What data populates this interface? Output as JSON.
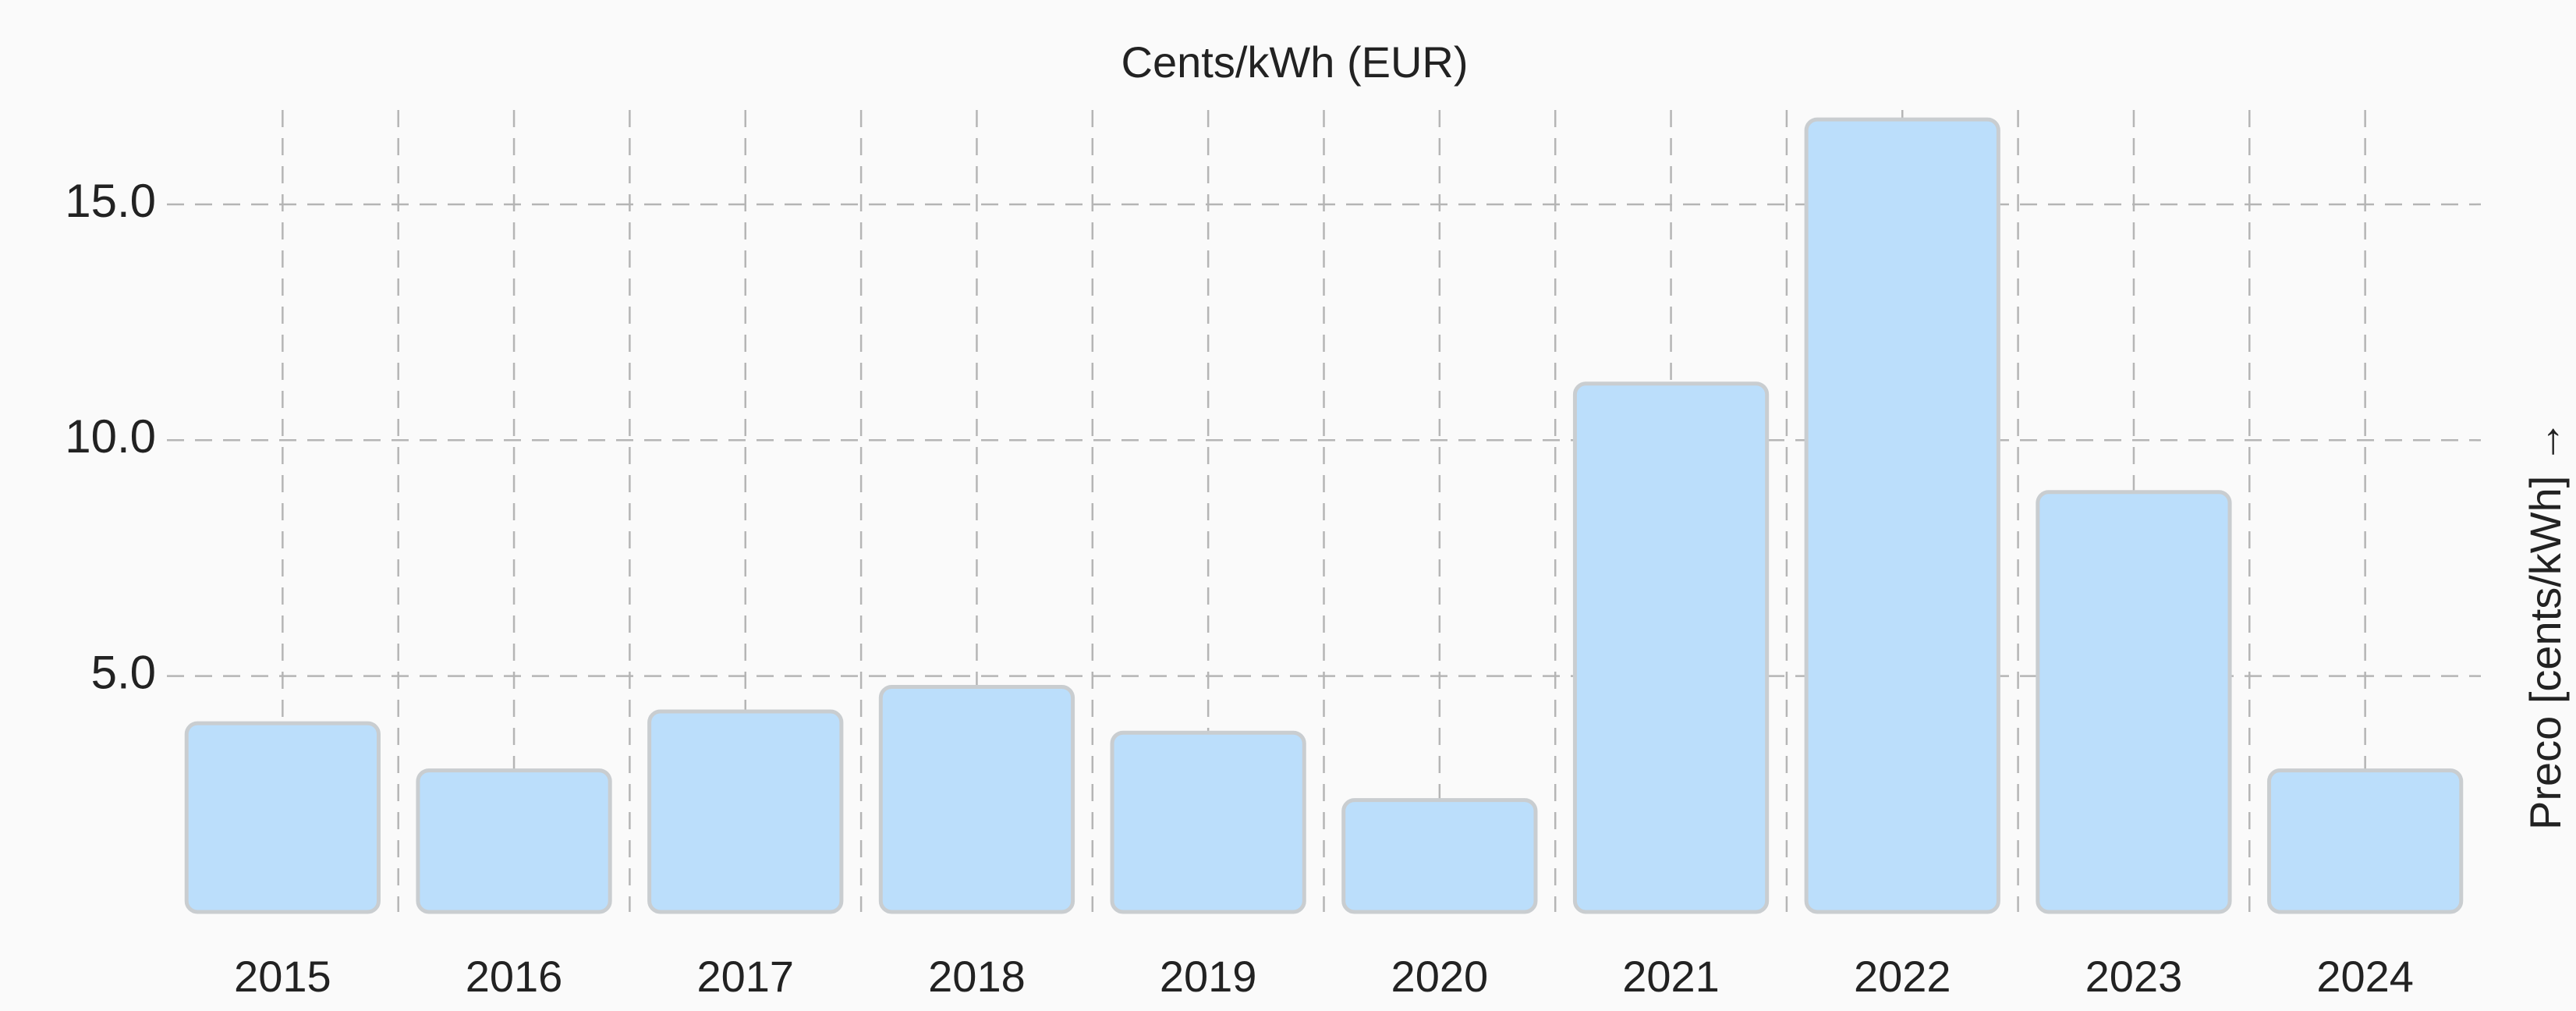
{
  "chart_data": {
    "type": "bar",
    "title": "Cents/kWh (EUR)",
    "y_label": "Preco [cents/kWh] →",
    "categories": [
      "2015",
      "2016",
      "2017",
      "2018",
      "2019",
      "2020",
      "2021",
      "2022",
      "2023",
      "2024"
    ],
    "values": [
      4.0,
      3.0,
      4.25,
      4.77,
      3.8,
      2.37,
      11.2,
      16.8,
      8.9,
      3.0
    ],
    "color": "#bbdefb",
    "ylim": [
      0,
      17
    ],
    "yticks": [
      {
        "value": 5,
        "label": "5.0"
      },
      {
        "value": 10,
        "label": "10.0"
      },
      {
        "value": 15,
        "label": "15.0"
      }
    ],
    "grid": true
  }
}
